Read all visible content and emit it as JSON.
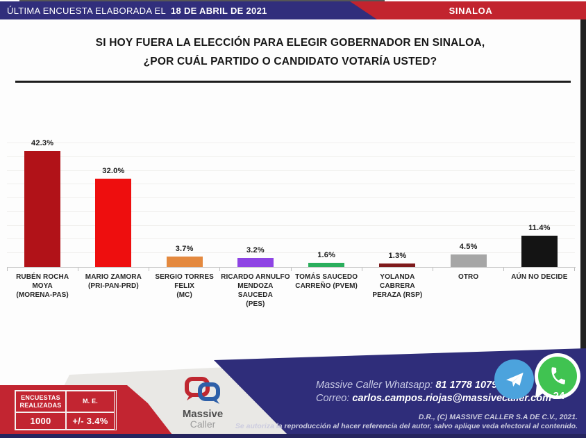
{
  "header": {
    "left_label": "ÚLTIMA ENCUESTA ELABORADA EL",
    "left_date": "18 DE ABRIL DE 2021",
    "region": "SINALOA"
  },
  "title": {
    "line1": "SI HOY FUERA LA ELECCIÓN PARA ELEGIR GOBERNADOR EN SINALOA,",
    "line2": "¿POR CUÁL PARTIDO O CANDIDATO VOTARÍA USTED?"
  },
  "chart_data": {
    "type": "bar",
    "title": "SI HOY FUERA LA ELECCIÓN PARA ELEGIR GOBERNADOR EN SINALOA, ¿POR CUÁL PARTIDO O CANDIDATO VOTARÍA USTED?",
    "categories": [
      "RUBÉN ROCHA MOYA\n(MORENA-PAS)",
      "MARIO ZAMORA\n(PRI-PAN-PRD)",
      "SERGIO TORRES FELIX\n(MC)",
      "RICARDO ARNULFO\nMENDOZA SAUCEDA\n(PES)",
      "TOMÁS SAUCEDO\nCARREÑO (PVEM)",
      "YOLANDA CABRERA\nPERAZA (RSP)",
      "OTRO",
      "AÚN NO DECIDE"
    ],
    "values": [
      42.3,
      32.0,
      3.7,
      3.2,
      1.6,
      1.3,
      4.5,
      11.4
    ],
    "value_labels": [
      "42.3%",
      "32.0%",
      "3.7%",
      "3.2%",
      "1.6%",
      "1.3%",
      "4.5%",
      "11.4%"
    ],
    "colors": [
      "#b11218",
      "#ee0e0e",
      "#e4893f",
      "#8e44e4",
      "#2aae5c",
      "#7e1a1c",
      "#a6a6a6",
      "#141414"
    ],
    "xlabel": "",
    "ylabel": "",
    "ylim": [
      0,
      45
    ],
    "grid_step": 5,
    "grid": true,
    "legend": "none"
  },
  "footer": {
    "stats": {
      "col1_header": "ENCUESTAS\nREALIZADAS",
      "col2_header": "M. E.",
      "col1_value": "1000",
      "col2_value": "+/- 3.4%"
    },
    "logo": {
      "name": "Massive",
      "sub": "Caller"
    },
    "contact": {
      "whatsapp_label": "Massive Caller Whatsapp: ",
      "whatsapp_number": "81 1778 1079",
      "email_label": "Correo: ",
      "email": "carlos.campos.riojas@massivecaller.com"
    },
    "page_number": "24",
    "copyright1": "D.R., (C) MASSIVE CALLER S.A DE C.V., 2021.",
    "copyright2": "Se autoriza la reproducción al hacer referencia del autor, salvo aplique veda electoral al contenido."
  },
  "icons": {
    "telegram": "paper-plane in light-blue circle",
    "whatsapp": "phone handset in green bubble"
  },
  "colors": {
    "header_navy": "#312e7c",
    "header_red": "#c2242e",
    "banner_blue": "#2f2d7a",
    "banner_red": "#c22531",
    "banner_gray": "#e9e8e5",
    "edge_strip": "#212121"
  }
}
